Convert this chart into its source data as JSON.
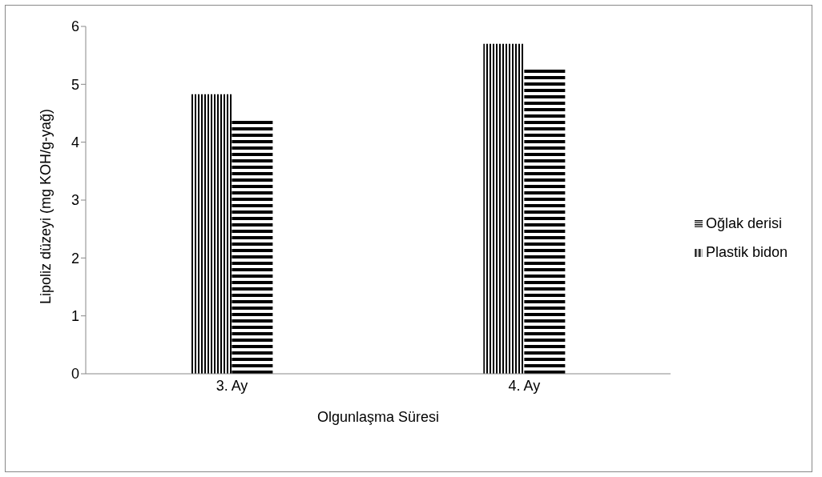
{
  "chart_data": {
    "type": "bar",
    "xlabel": "Olgunlaşma Süresi",
    "ylabel": "Lipoliz düzeyi (mg KOH/g-yağ)",
    "categories": [
      "3. Ay",
      "4. Ay"
    ],
    "series": [
      {
        "name": "Plastik bidon",
        "color": "#000000",
        "values": [
          4.83,
          5.7
        ]
      },
      {
        "name": "Oğlak derisi",
        "color": "#000000",
        "values": [
          4.4,
          5.29
        ]
      }
    ],
    "ylim": [
      0,
      6
    ],
    "yticks": [
      0,
      1,
      2,
      3,
      4,
      5,
      6
    ],
    "grid": false,
    "legend": "right"
  }
}
